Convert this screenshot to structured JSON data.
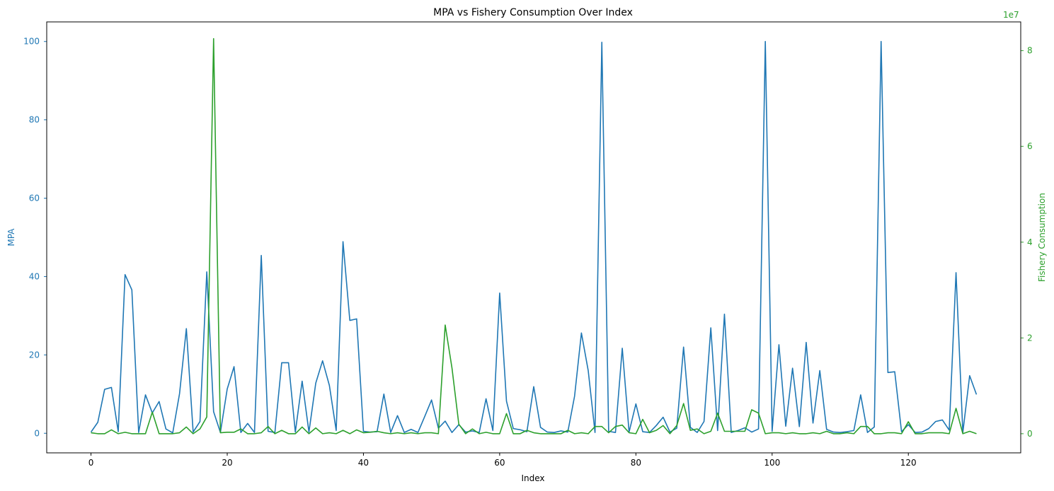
{
  "chart_data": {
    "type": "line",
    "title": "MPA vs Fishery Consumption Over Index",
    "xlabel": "Index",
    "ylabel_left": "MPA",
    "ylabel_right": "Fishery Consumption",
    "right_axis_multiplier": "1e7",
    "x_ticks": [
      0,
      20,
      40,
      60,
      80,
      100,
      120
    ],
    "y_left_ticks": [
      0,
      20,
      40,
      60,
      80,
      100
    ],
    "y_right_ticks": [
      0,
      2,
      4,
      6,
      8
    ],
    "xlim": [
      -6.5,
      136.5
    ],
    "y_left_lim": [
      -5,
      105
    ],
    "y_right_lim": [
      -0.4,
      8.6
    ],
    "colors": {
      "MPA": "#1f77b4",
      "Fishery Consumption": "#2ca02c"
    },
    "series": [
      {
        "name": "MPA",
        "axis": "left",
        "values": [
          0.3,
          2.8,
          11.2,
          11.7,
          0.4,
          40.5,
          36.6,
          0.2,
          9.8,
          5.2,
          8.1,
          1.1,
          0.1,
          10.1,
          26.7,
          0.3,
          3.0,
          41.2,
          5.5,
          0.2,
          11.3,
          17.0,
          0.2,
          2.5,
          0.2,
          45.4,
          0.5,
          0.2,
          18.0,
          18.0,
          0.3,
          13.3,
          0.3,
          12.8,
          18.5,
          12.2,
          0.7,
          48.9,
          28.8,
          29.2,
          0.5,
          0.3,
          0.4,
          10.0,
          0.2,
          4.5,
          0.2,
          1.0,
          0.2,
          4.3,
          8.5,
          1.3,
          3.1,
          0.2,
          2.2,
          0.3,
          0.6,
          0.2,
          8.8,
          0.7,
          35.8,
          8.2,
          1.2,
          0.9,
          0.4,
          11.9,
          1.5,
          0.3,
          0.2,
          0.6,
          0.3,
          9.5,
          25.6,
          16.0,
          0.2,
          99.8,
          0.5,
          0.2,
          21.7,
          0.3,
          7.5,
          0.4,
          0.2,
          2.0,
          4.1,
          0.3,
          1.3,
          22.0,
          1.5,
          0.2,
          3.0,
          26.9,
          0.7,
          30.4,
          0.2,
          0.7,
          1.4,
          0.3,
          1.1,
          100.0,
          0.5,
          22.6,
          1.8,
          16.6,
          1.7,
          23.2,
          2.6,
          16.0,
          1.0,
          0.3,
          0.2,
          0.4,
          0.7,
          9.8,
          0.2,
          1.6,
          100.0,
          15.5,
          15.7,
          0.4,
          2.2,
          0.2,
          0.3,
          1.2,
          3.0,
          3.4,
          0.8,
          41.0,
          0.2,
          14.7,
          9.9
        ]
      },
      {
        "name": "Fishery Consumption",
        "axis": "right",
        "values": [
          0.02,
          0.0,
          0.0,
          0.08,
          0.0,
          0.03,
          0.0,
          0.0,
          0.0,
          0.45,
          0.0,
          0.0,
          0.0,
          0.02,
          0.14,
          0.0,
          0.1,
          0.35,
          8.25,
          0.02,
          0.03,
          0.03,
          0.1,
          0.0,
          0.0,
          0.02,
          0.15,
          0.0,
          0.07,
          0.0,
          0.0,
          0.14,
          0.0,
          0.12,
          0.0,
          0.02,
          0.0,
          0.07,
          0.0,
          0.08,
          0.02,
          0.03,
          0.05,
          0.02,
          0.0,
          0.02,
          0.0,
          0.02,
          0.0,
          0.02,
          0.02,
          0.0,
          2.27,
          1.37,
          0.2,
          0.0,
          0.1,
          0.0,
          0.03,
          0.0,
          0.0,
          0.42,
          0.0,
          0.0,
          0.07,
          0.02,
          0.0,
          0.0,
          0.0,
          0.0,
          0.07,
          0.0,
          0.02,
          0.0,
          0.15,
          0.15,
          0.02,
          0.15,
          0.18,
          0.02,
          0.0,
          0.3,
          0.02,
          0.07,
          0.17,
          0.0,
          0.17,
          0.63,
          0.07,
          0.1,
          0.0,
          0.05,
          0.43,
          0.05,
          0.05,
          0.05,
          0.05,
          0.5,
          0.43,
          0.0,
          0.02,
          0.02,
          0.0,
          0.02,
          0.0,
          0.0,
          0.02,
          0.0,
          0.05,
          0.0,
          0.0,
          0.02,
          0.0,
          0.15,
          0.15,
          0.0,
          0.0,
          0.02,
          0.02,
          0.0,
          0.25,
          0.0,
          0.0,
          0.02,
          0.02,
          0.02,
          0.0,
          0.53,
          0.0,
          0.05,
          0.0
        ]
      }
    ]
  }
}
